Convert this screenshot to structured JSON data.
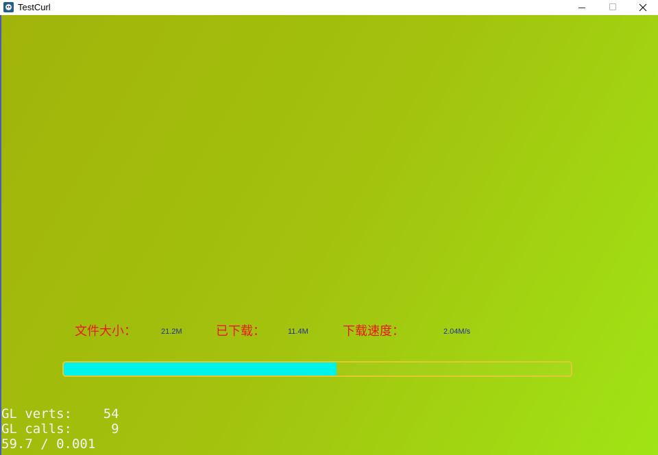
{
  "window": {
    "title": "TestCurl",
    "icon": "app-icon",
    "controls": [
      "minimize-icon",
      "maximize-icon",
      "close-icon"
    ]
  },
  "download": {
    "file_size_label": "文件大小：",
    "file_size_value": "21.2M",
    "downloaded_label": "已下载：",
    "downloaded_value": "11.4M",
    "speed_label": "下载速度：",
    "speed_value": "2.04M/s",
    "progress_fraction": 0.5375
  },
  "debug_stats": {
    "verts_line": "GL verts:    54",
    "calls_line": "GL calls:     9",
    "fps_line": "59.7 / 0.001"
  },
  "colors": {
    "label": "#e8190e",
    "value": "#1c2f9e",
    "progress_fill": "#00f3ea",
    "progress_border": "#e2c832",
    "background_start": "#a1b40a",
    "background_end": "#a0e415"
  }
}
